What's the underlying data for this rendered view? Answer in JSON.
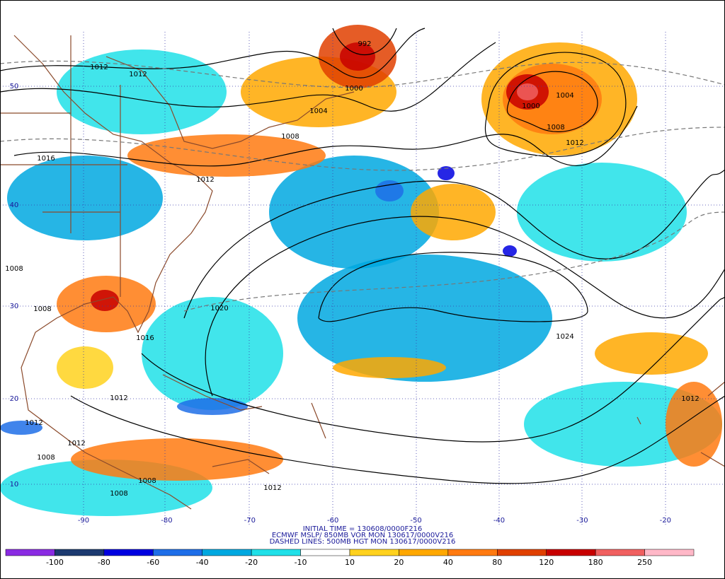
{
  "map": {
    "caption": [
      "INITIAL TIME = 130608/0000F216",
      "ECMWF MSLP/ 850MB VOR MON 130617/0000V216",
      "DASHED LINES: 500MB HGT MON 130617/0000V216"
    ],
    "isobar_labels": [
      "1012",
      "1012",
      "1016",
      "1012",
      "1008",
      "1004",
      "1000",
      "992",
      "1004",
      "1000",
      "1008",
      "1012",
      "1008",
      "1008",
      "1020",
      "1016",
      "1024",
      "1012",
      "1012",
      "1012",
      "1008",
      "1008",
      "1008",
      "1012",
      "1012"
    ],
    "lat_labels": [
      "50",
      "40",
      "30",
      "20",
      "10"
    ],
    "lon_labels": [
      "-90",
      "-80",
      "-70",
      "-60",
      "-50",
      "-40",
      "-30",
      "-20"
    ]
  },
  "colorbar": {
    "ticks": [
      -100,
      -80,
      -60,
      -40,
      -20,
      -10,
      10,
      20,
      40,
      80,
      120,
      180,
      250
    ],
    "colors": [
      "#8a2be2",
      "#1c3a70",
      "#0000e0",
      "#1e6ee8",
      "#00a8e0",
      "#20e0e8",
      "#ffffff",
      "#ffd21e",
      "#ffa800",
      "#ff7a10",
      "#e04000",
      "#c80000",
      "#f06060",
      "#ffb8c8"
    ]
  }
}
